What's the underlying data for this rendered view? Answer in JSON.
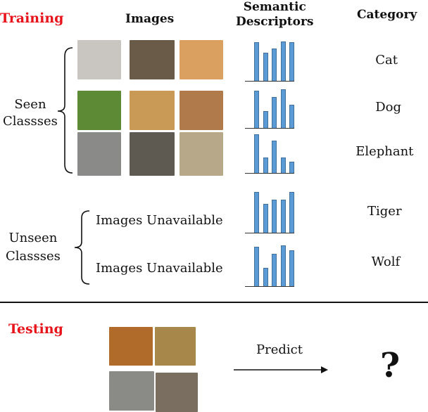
{
  "training": {
    "label": "Training",
    "headers": {
      "images": "Images",
      "descriptors": "Semantic\nDescriptors",
      "category": "Category"
    }
  },
  "seen_label": "Seen\nClassses",
  "unseen_label": "Unseen\nClassses",
  "classes": [
    {
      "name": "Cat",
      "images": [
        "cat-1",
        "cat-2",
        "cat-3"
      ],
      "colors": [
        "#c9c6c1",
        "#6a5a48",
        "#d9a060"
      ],
      "descriptor": [
        0.98,
        0.72,
        0.82,
        1.0,
        0.98
      ]
    },
    {
      "name": "Dog",
      "images": [
        "dog-1",
        "dog-2",
        "dog-3"
      ],
      "colors": [
        "#5d8a35",
        "#c89a55",
        "#b07a4a"
      ],
      "descriptor": [
        0.97,
        0.45,
        0.8,
        1.0,
        0.6
      ]
    },
    {
      "name": "Elephant",
      "images": [
        "elephant-1",
        "elephant-2",
        "elephant-3"
      ],
      "colors": [
        "#8a8a88",
        "#5e5a52",
        "#b8a88a"
      ],
      "descriptor": [
        1.0,
        0.41,
        0.84,
        0.41,
        0.3
      ]
    },
    {
      "name": "Tiger",
      "unavailable": "Images Unavailable",
      "descriptor": [
        1.0,
        0.72,
        0.82,
        0.82,
        1.0
      ]
    },
    {
      "name": "Wolf",
      "unavailable": "Images Unavailable",
      "descriptor": [
        0.97,
        0.45,
        0.8,
        1.0,
        0.88
      ]
    }
  ],
  "testing": {
    "label": "Testing",
    "predict": "Predict",
    "unknown": "?",
    "images": [
      "tiger-1",
      "tiger-2",
      "wolf-1",
      "wolf-2"
    ],
    "colors": [
      "#b06a2a",
      "#a8884a",
      "#8a8a86",
      "#7a6e60"
    ]
  },
  "colors": {
    "accent": "#e8141b",
    "bar": "#5b9bd5"
  }
}
